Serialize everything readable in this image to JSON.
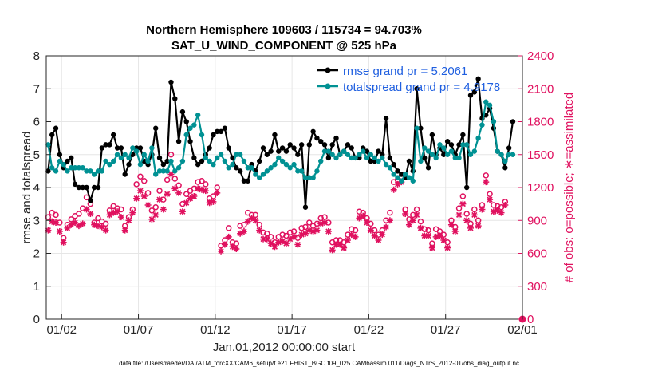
{
  "chart_data": {
    "type": "line",
    "title_line1": "Northern Hemisphere 109603 / 115734 = 94.703%",
    "title_line2": "SAT_U_WIND_COMPONENT @ 525 hPa",
    "xlabel": "Jan.01,2012 00:00:00 start",
    "ylabel_left": "rmse and totalspread",
    "ylabel_right": "# of obs: o=possible; ∗=assimilated",
    "footer": "data file: /Users/raeder/DAI/ATM_forcXX/CAM6_setup/f.e21.FHIST_BGC.f09_025.CAM6assim.011/Diags_NTrS_2012-01/obs_diag_output.nc",
    "xlim": [
      0.5,
      31.5
    ],
    "ylim_left": [
      0,
      8
    ],
    "ylim_right": [
      0,
      2400
    ],
    "x_ticks": [
      {
        "value": 1.5,
        "label": "01/02"
      },
      {
        "value": 6.5,
        "label": "01/07"
      },
      {
        "value": 11.5,
        "label": "01/12"
      },
      {
        "value": 16.5,
        "label": "01/17"
      },
      {
        "value": 21.5,
        "label": "01/22"
      },
      {
        "value": 26.5,
        "label": "01/27"
      },
      {
        "value": 31.5,
        "label": "02/01"
      }
    ],
    "y_ticks_left": [
      "0",
      "1",
      "2",
      "3",
      "4",
      "5",
      "6",
      "7",
      "8"
    ],
    "y_ticks_right": [
      "0",
      "300",
      "600",
      "900",
      "1200",
      "1500",
      "1800",
      "2100",
      "2400"
    ],
    "grid": true,
    "legend_position": "top-right",
    "colors": {
      "rmse": "#000000",
      "spread": "#009193",
      "obs": "#e0115f"
    },
    "series": [
      {
        "name": "rmse",
        "legend": "rmse grand pr = 5.2061",
        "axis": "left",
        "x_start": 0.625,
        "x_step": 0.25,
        "values": [
          4.5,
          5.6,
          5.8,
          5.0,
          4.6,
          4.8,
          4.9,
          4.1,
          4.0,
          4.0,
          4.0,
          3.6,
          4.0,
          4.0,
          5.2,
          5.3,
          5.3,
          5.6,
          5.2,
          5.2,
          4.4,
          4.7,
          5.0,
          5.2,
          5.2,
          4.8,
          4.7,
          5.0,
          5.8,
          4.9,
          4.7,
          4.8,
          7.2,
          6.7,
          5.4,
          6.3,
          6.0,
          5.4,
          4.9,
          4.7,
          4.8,
          5.0,
          5.2,
          5.6,
          5.7,
          5.7,
          5.8,
          5.2,
          4.9,
          4.6,
          4.5,
          4.2,
          4.2,
          4.7,
          4.5,
          4.8,
          5.2,
          5.0,
          5.1,
          5.6,
          5.1,
          5.2,
          5.1,
          5.3,
          5.2,
          5.0,
          5.3,
          3.4,
          5.3,
          5.7,
          5.5,
          5.4,
          5.3,
          4.9,
          5.3,
          5.5,
          5.0,
          5.1,
          5.3,
          5.2,
          4.9,
          4.9,
          5.2,
          5.1,
          4.8,
          4.8,
          5.1,
          5.0,
          6.1,
          4.9,
          4.7,
          4.5,
          4.4,
          4.3,
          4.8,
          4.5,
          7.0,
          5.8,
          4.9,
          4.6,
          5.6,
          5.0,
          5.2,
          5.0,
          5.4,
          5.3,
          5.0,
          5.3,
          5.6,
          4.0,
          6.8,
          6.9,
          7.3,
          6.1,
          6.2,
          6.4,
          5.8,
          5.1,
          5.0,
          4.6,
          5.2,
          6.0
        ]
      },
      {
        "name": "totalspread",
        "legend": "totalspread grand pr = 4.9178",
        "axis": "left",
        "x_start": 0.625,
        "x_step": 0.25,
        "values": [
          5.3,
          4.6,
          4.5,
          4.8,
          4.7,
          4.5,
          4.6,
          4.6,
          4.6,
          4.6,
          4.5,
          4.5,
          4.4,
          4.5,
          4.5,
          4.8,
          4.7,
          4.8,
          5.0,
          4.9,
          5.0,
          4.9,
          5.2,
          5.1,
          4.7,
          5.0,
          4.8,
          5.2,
          4.4,
          4.5,
          4.5,
          4.5,
          4.8,
          4.5,
          4.6,
          4.8,
          5.6,
          5.8,
          5.9,
          6.2,
          5.6,
          4.9,
          4.8,
          4.7,
          4.9,
          5.0,
          4.8,
          4.6,
          4.7,
          5.0,
          5.0,
          4.8,
          4.6,
          4.6,
          4.4,
          4.3,
          4.4,
          4.5,
          4.6,
          4.7,
          4.9,
          4.8,
          4.7,
          4.6,
          4.7,
          4.5,
          4.5,
          4.3,
          4.3,
          4.3,
          4.5,
          4.8,
          5.1,
          5.1,
          5.0,
          4.9,
          5.0,
          5.1,
          5.0,
          4.9,
          4.9,
          5.0,
          5.1,
          4.9,
          5.0,
          4.9,
          4.8,
          4.9,
          4.7,
          4.6,
          4.4,
          4.3,
          4.2,
          4.4,
          4.3,
          4.2,
          5.8,
          4.8,
          5.2,
          5.1,
          5.0,
          4.9,
          5.3,
          5.2,
          5.0,
          5.1,
          4.9,
          4.9,
          5.3,
          5.3,
          5.0,
          5.1,
          5.5,
          5.9,
          6.6,
          6.5,
          6.0,
          5.1,
          5.0,
          4.8,
          5.0,
          5.0
        ]
      },
      {
        "name": "obs possible",
        "axis": "right",
        "marker": "o",
        "x_start": 0.625,
        "x_step": 0.25,
        "values": [
          930,
          970,
          950,
          880,
          740,
          860,
          910,
          940,
          960,
          1010,
          1110,
          1050,
          880,
          920,
          890,
          870,
          990,
          1030,
          1010,
          1000,
          850,
          930,
          1000,
          1230,
          1300,
          1260,
          1150,
          990,
          1020,
          1170,
          1090,
          1270,
          1500,
          1280,
          1220,
          1050,
          1140,
          1170,
          1190,
          1250,
          1260,
          1230,
          1100,
          1120,
          1200,
          670,
          720,
          830,
          700,
          690,
          850,
          860,
          970,
          950,
          950,
          860,
          790,
          780,
          750,
          700,
          750,
          770,
          760,
          790,
          800,
          740,
          830,
          840,
          880,
          850,
          870,
          920,
          930,
          880,
          700,
          720,
          720,
          700,
          770,
          820,
          810,
          980,
          970,
          920,
          870,
          810,
          770,
          810,
          900,
          970,
          1250,
          1270,
          1300,
          1000,
          910,
          950,
          1000,
          890,
          820,
          810,
          690,
          820,
          800,
          770,
          700,
          900,
          840,
          1010,
          1120,
          960,
          870,
          1000,
          900,
          1040,
          1310,
          1140,
          1040,
          1030,
          1020,
          1070
        ]
      },
      {
        "name": "obs assimilated",
        "axis": "right",
        "marker": "*",
        "x_start": 0.625,
        "x_step": 0.25,
        "values": [
          810,
          890,
          880,
          800,
          700,
          830,
          860,
          880,
          850,
          870,
          1000,
          960,
          860,
          850,
          840,
          810,
          950,
          970,
          980,
          930,
          810,
          900,
          970,
          1100,
          1170,
          1120,
          1040,
          910,
          950,
          1090,
          1000,
          1140,
          1320,
          1190,
          1150,
          980,
          1060,
          1100,
          1120,
          1190,
          1180,
          1170,
          1060,
          1070,
          1150,
          620,
          680,
          750,
          660,
          640,
          780,
          800,
          890,
          920,
          900,
          810,
          730,
          730,
          690,
          660,
          700,
          710,
          690,
          730,
          750,
          680,
          770,
          780,
          810,
          800,
          810,
          870,
          880,
          800,
          630,
          680,
          680,
          650,
          720,
          770,
          750,
          920,
          940,
          880,
          810,
          760,
          720,
          770,
          840,
          900,
          1180,
          1230,
          1250,
          960,
          860,
          900,
          950,
          830,
          760,
          760,
          650,
          750,
          760,
          720,
          650,
          860,
          800,
          950,
          1050,
          900,
          830,
          950,
          850,
          1000,
          1250,
          1090,
          980,
          990,
          970,
          1040
        ]
      }
    ]
  }
}
